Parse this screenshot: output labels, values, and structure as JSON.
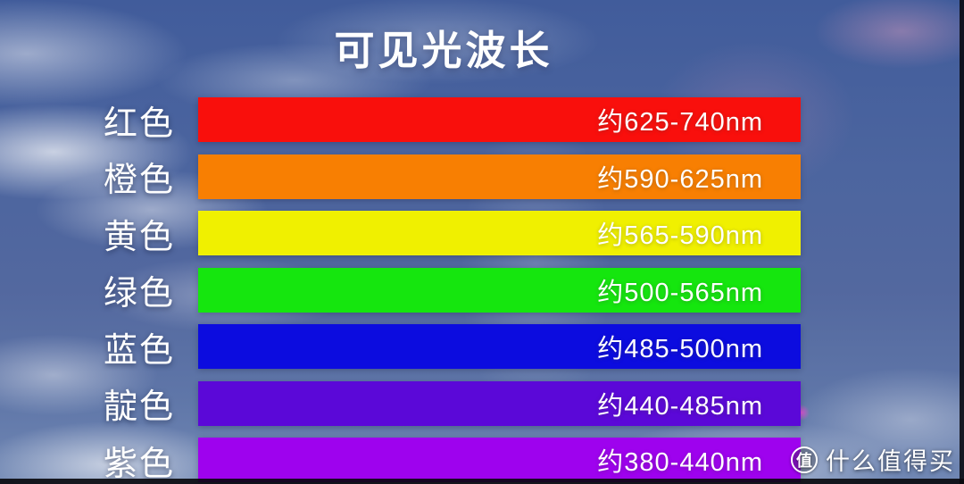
{
  "title": "可见光波长",
  "chart_data": {
    "type": "bar",
    "title": "可见光波长",
    "unit": "nm",
    "legend_position": "none",
    "grid": false,
    "categories": [
      "红色",
      "橙色",
      "黄色",
      "绿色",
      "蓝色",
      "靛色",
      "紫色"
    ],
    "rows": [
      {
        "category": "红色",
        "range_label": "约625-740nm",
        "min_nm": 625,
        "max_nm": 740,
        "color": "#f90f0c"
      },
      {
        "category": "橙色",
        "range_label": "约590-625nm",
        "min_nm": 590,
        "max_nm": 625,
        "color": "#f87f02"
      },
      {
        "category": "黄色",
        "range_label": "约565-590nm",
        "min_nm": 565,
        "max_nm": 590,
        "color": "#f0f000"
      },
      {
        "category": "绿色",
        "range_label": "约500-565nm",
        "min_nm": 500,
        "max_nm": 565,
        "color": "#15e60e"
      },
      {
        "category": "蓝色",
        "range_label": "约485-500nm",
        "min_nm": 485,
        "max_nm": 500,
        "color": "#0c0cdf"
      },
      {
        "category": "靛色",
        "range_label": "约440-485nm",
        "min_nm": 440,
        "max_nm": 485,
        "color": "#5b08d8"
      },
      {
        "category": "紫色",
        "range_label": "约380-440nm",
        "min_nm": 380,
        "max_nm": 440,
        "color": "#9e02ee"
      }
    ]
  },
  "watermark": {
    "icon_glyph": "值",
    "label": "什么值得买"
  }
}
